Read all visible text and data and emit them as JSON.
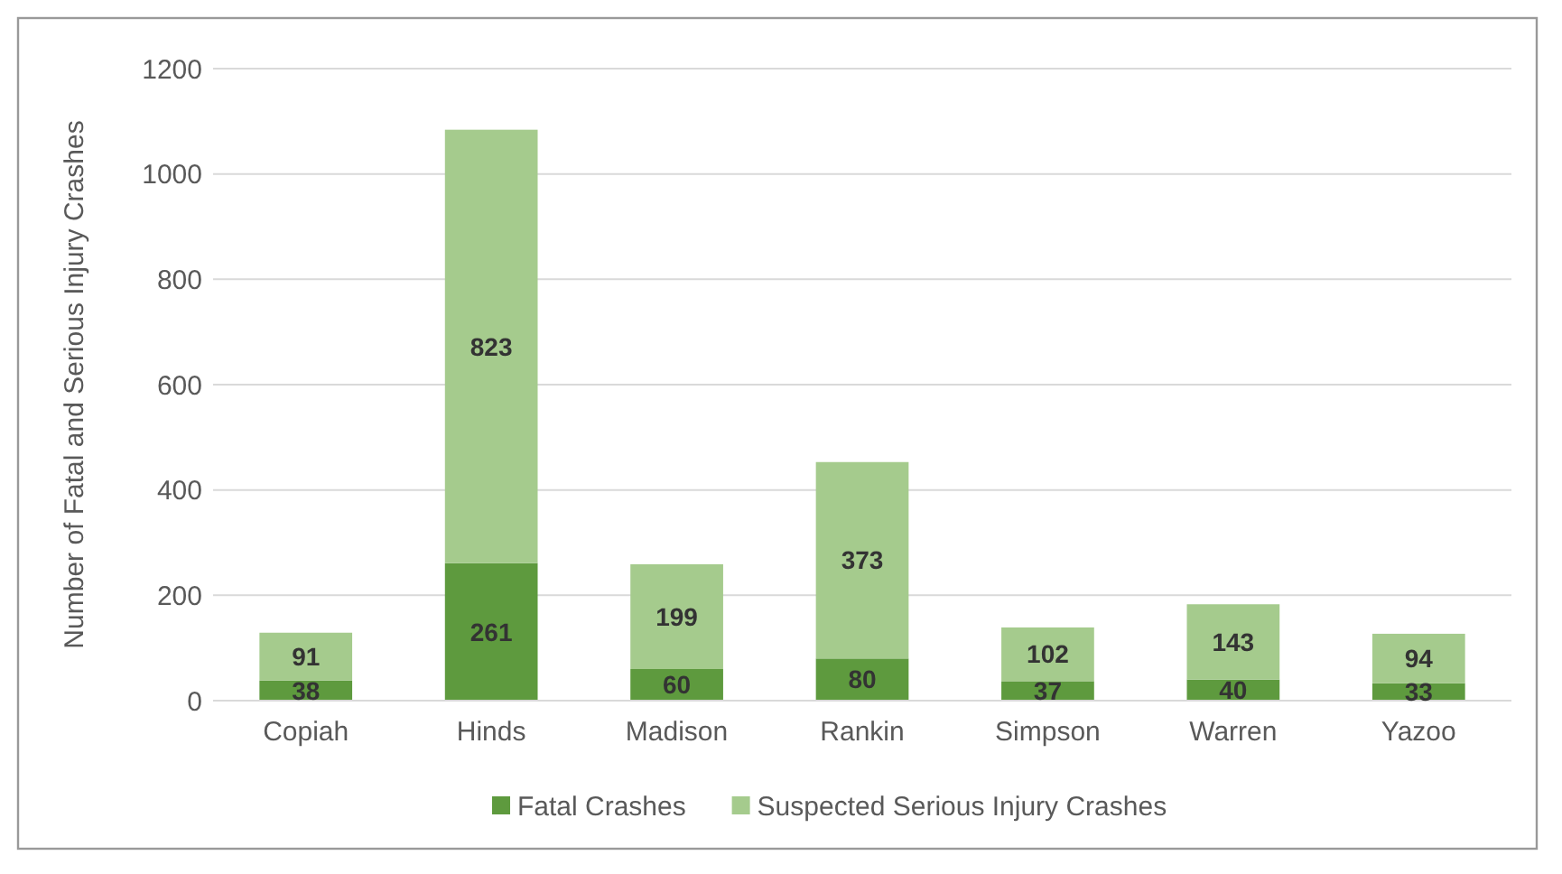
{
  "chart_data": {
    "type": "bar",
    "stacked": true,
    "ylabel": "Number of Fatal and Serious Injury Crashes",
    "categories": [
      "Copiah",
      "Hinds",
      "Madison",
      "Rankin",
      "Simpson",
      "Warren",
      "Yazoo"
    ],
    "series": [
      {
        "name": "Fatal Crashes",
        "color": "#5e9a3e",
        "values": [
          38,
          261,
          60,
          80,
          37,
          40,
          33
        ]
      },
      {
        "name": "Suspected Serious Injury Crashes",
        "color": "#a5cb8d",
        "values": [
          91,
          823,
          199,
          373,
          102,
          143,
          94
        ]
      }
    ],
    "ylim": [
      0,
      1200
    ],
    "yticks": [
      0,
      200,
      400,
      600,
      800,
      1000,
      1200
    ],
    "grid": "y",
    "legend": "bottom",
    "data_labels": true
  }
}
